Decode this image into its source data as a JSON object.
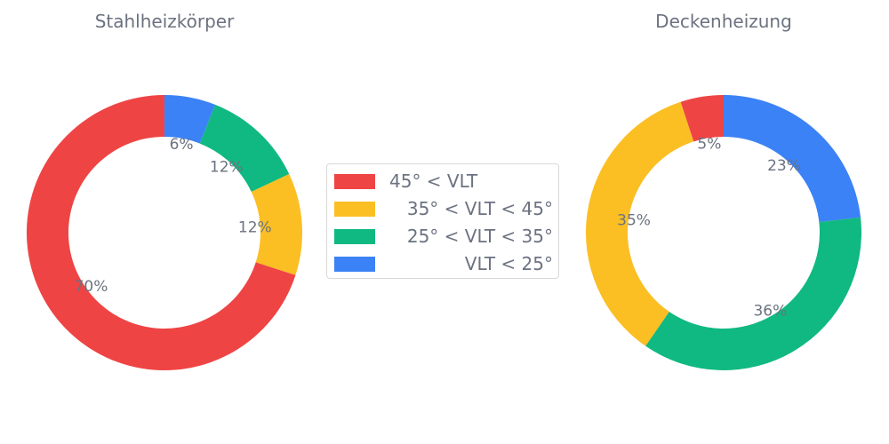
{
  "chart_data": [
    {
      "type": "pie",
      "donut": true,
      "title": "Stahlheizkörper",
      "categories": [
        "45° < VLT",
        "35° < VLT < 45°",
        "25° < VLT < 35°",
        "VLT < 25°"
      ],
      "values": [
        70,
        12,
        12,
        6
      ],
      "labels": [
        "70%",
        "12%",
        "12%",
        "6%"
      ]
    },
    {
      "type": "pie",
      "donut": true,
      "title": "Deckenheizung",
      "categories": [
        "45° < VLT",
        "35° < VLT < 45°",
        "25° < VLT < 35°",
        "VLT < 25°"
      ],
      "values": [
        5,
        35,
        36,
        23
      ],
      "labels": [
        "5%",
        "35%",
        "36%",
        "23%"
      ]
    }
  ],
  "legend": {
    "entries": [
      {
        "label": "45° < VLT",
        "color": "#ef4444"
      },
      {
        "label": "35° < VLT < 45°",
        "color": "#fbbf24"
      },
      {
        "label": "25° < VLT < 35°",
        "color": "#10b981"
      },
      {
        "label": "VLT < 25°",
        "color": "#3b82f6"
      }
    ],
    "placement": "center"
  },
  "colors": {
    "red": "#ef4444",
    "yellow": "#fbbf24",
    "green": "#10b981",
    "blue": "#3b82f6",
    "text": "#6b7280"
  }
}
